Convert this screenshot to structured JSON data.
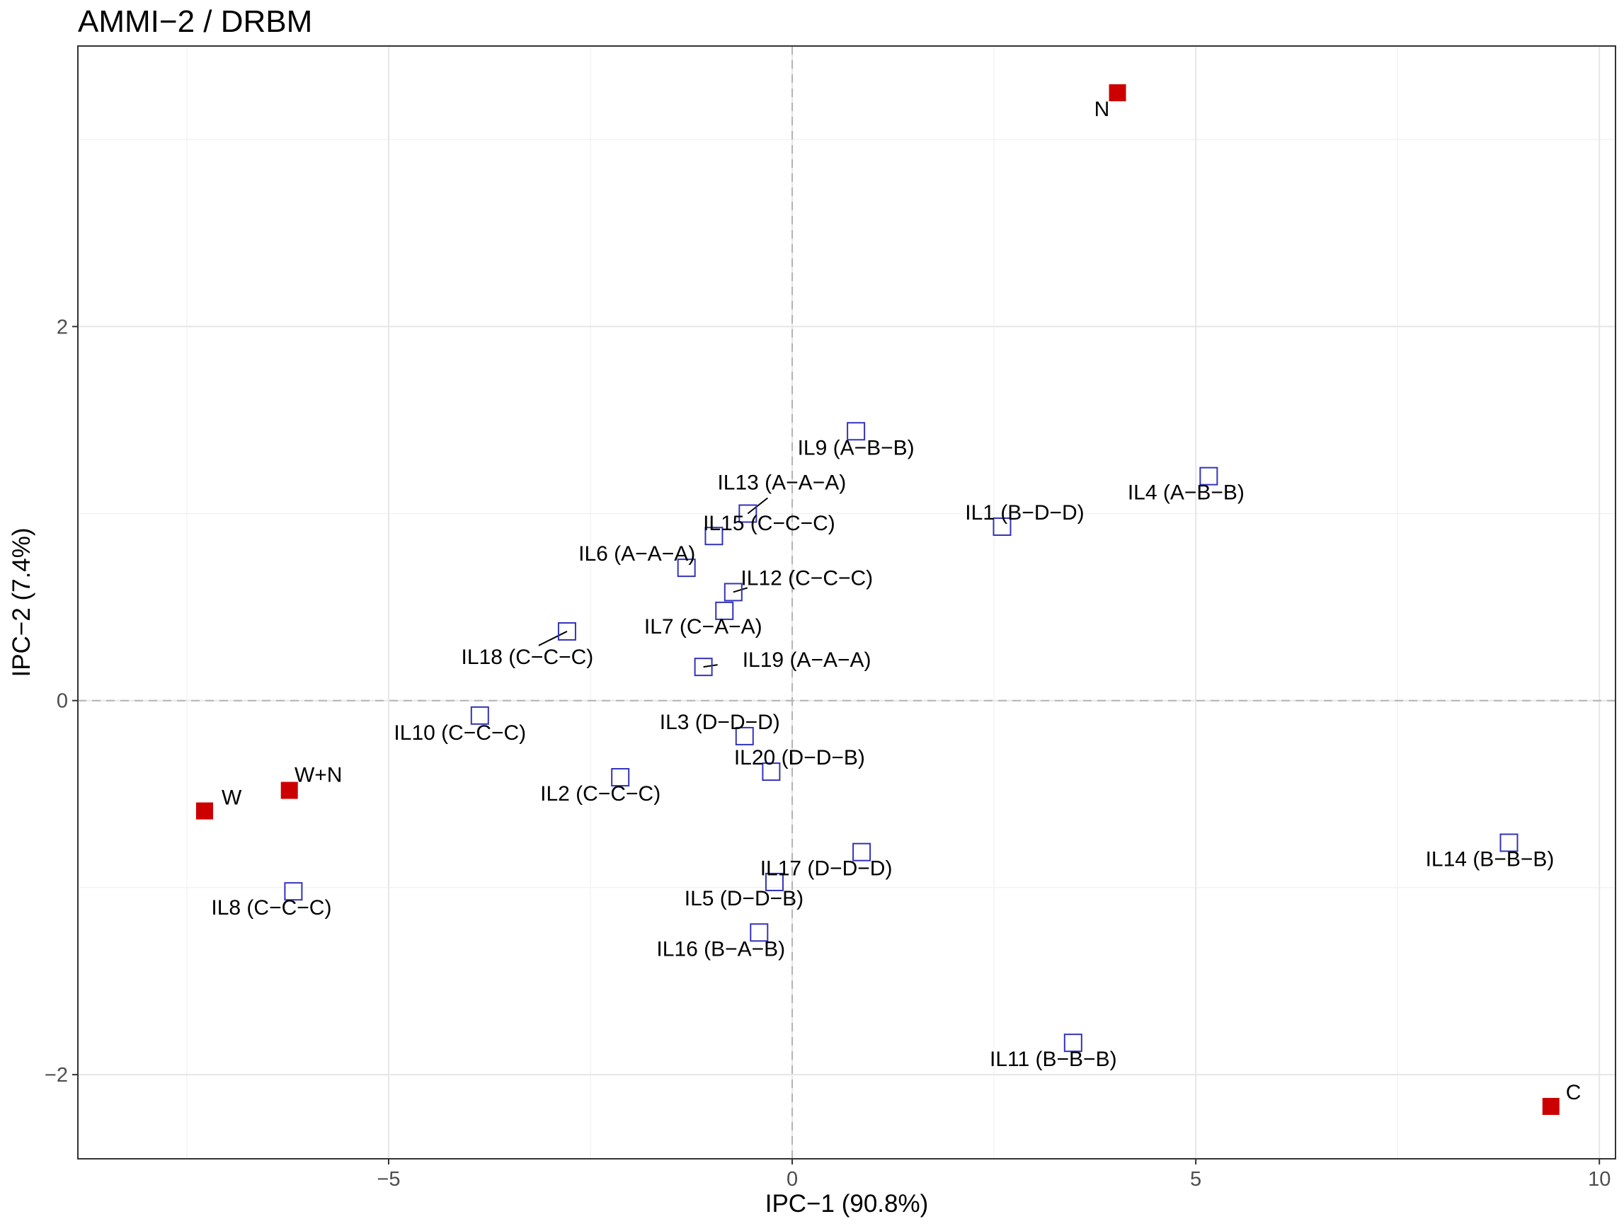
{
  "chart_data": {
    "type": "scatter",
    "title": "AMMI−2 / DRBM",
    "xlabel": "IPC−1 (90.8%)",
    "ylabel": "IPC−2 (7.4%)",
    "xlim": [
      -8.85,
      10.2
    ],
    "ylim": [
      -2.45,
      3.5
    ],
    "x_ticks": [
      -5,
      0,
      5,
      10
    ],
    "x_tick_labels": [
      "−5",
      "0",
      "5",
      "10"
    ],
    "y_ticks": [
      -2,
      0,
      2
    ],
    "y_tick_labels": [
      "−2",
      "0",
      "2"
    ],
    "grid": true,
    "reference_lines": {
      "x": 0,
      "y": 0,
      "style": "dashed"
    },
    "legend": "none",
    "series": [
      {
        "kind": "environment",
        "marker": "filled-square",
        "color": "#cc0000",
        "points": [
          {
            "label": "N",
            "x": 4.03,
            "y": 3.25
          },
          {
            "label": "W+N",
            "x": -6.23,
            "y": -0.48
          },
          {
            "label": "W",
            "x": -7.28,
            "y": -0.59
          },
          {
            "label": "C",
            "x": 9.4,
            "y": -2.17
          }
        ]
      },
      {
        "kind": "genotype",
        "marker": "open-square",
        "color": "#3333bb",
        "points": [
          {
            "label": "IL9 (A−B−B)",
            "x": 0.79,
            "y": 1.44
          },
          {
            "label": "IL4 (A−B−B)",
            "x": 5.16,
            "y": 1.2
          },
          {
            "label": "IL1 (B−D−D)",
            "x": 2.6,
            "y": 0.93
          },
          {
            "label": "IL13 (A−A−A)",
            "x": -0.55,
            "y": 1.0
          },
          {
            "label": "IL15 (C−C−C)",
            "x": -0.97,
            "y": 0.88
          },
          {
            "label": "IL6 (A−A−A)",
            "x": -1.31,
            "y": 0.71
          },
          {
            "label": "IL12 (C−C−C)",
            "x": -0.73,
            "y": 0.58
          },
          {
            "label": "IL7 (C−A−A)",
            "x": -0.84,
            "y": 0.48
          },
          {
            "label": "IL18 (C−C−C)",
            "x": -2.79,
            "y": 0.37
          },
          {
            "label": "IL19 (A−A−A)",
            "x": -1.1,
            "y": 0.18
          },
          {
            "label": "IL10 (C−C−C)",
            "x": -3.87,
            "y": -0.08
          },
          {
            "label": "IL3 (D−D−D)",
            "x": -0.59,
            "y": -0.19
          },
          {
            "label": "IL20 (D−D−B)",
            "x": -0.26,
            "y": -0.38
          },
          {
            "label": "IL2 (C−C−C)",
            "x": -2.13,
            "y": -0.41
          },
          {
            "label": "IL14 (B−B−B)",
            "x": 8.88,
            "y": -0.76
          },
          {
            "label": "IL17 (D−D−D)",
            "x": 0.86,
            "y": -0.81
          },
          {
            "label": "IL5 (D−D−B)",
            "x": -0.22,
            "y": -0.97
          },
          {
            "label": "IL8 (C−C−C)",
            "x": -6.18,
            "y": -1.02
          },
          {
            "label": "IL16 (B−A−B)",
            "x": -0.41,
            "y": -1.24
          },
          {
            "label": "IL11 (B−B−B)",
            "x": 3.48,
            "y": -1.83
          }
        ]
      }
    ]
  }
}
